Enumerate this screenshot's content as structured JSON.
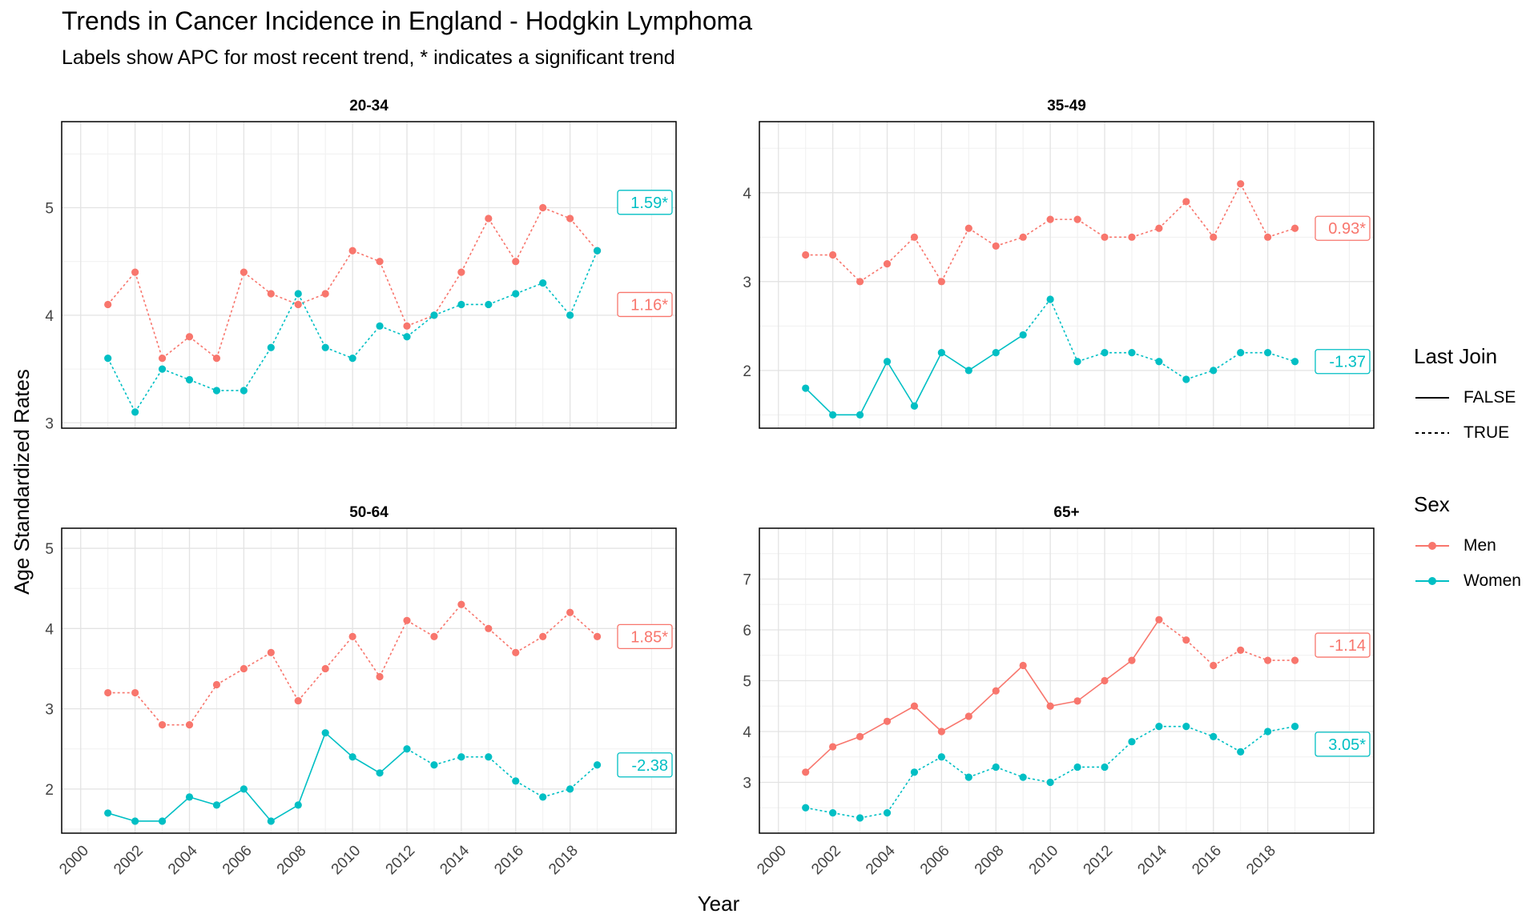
{
  "title": "Trends in Cancer Incidence in England - Hodgkin Lymphoma",
  "subtitle": "Labels show APC for most recent trend, * indicates a significant trend",
  "chart_data": {
    "type": "line",
    "xlabel": "Year",
    "ylabel": "Age Standardized Rates",
    "x_ticks": [
      "2000",
      "2002",
      "2004",
      "2006",
      "2008",
      "2010",
      "2012",
      "2014",
      "2016",
      "2018"
    ],
    "colors": {
      "Men": "#F8766D",
      "Women": "#00BFC4"
    },
    "grid": true,
    "legend_position": "right",
    "legends": [
      {
        "title": "Last Join",
        "items": [
          {
            "label": "FALSE",
            "linetype": "solid"
          },
          {
            "label": "TRUE",
            "linetype": "dotted"
          }
        ]
      },
      {
        "title": "Sex",
        "items": [
          {
            "label": "Men",
            "color": "#F8766D"
          },
          {
            "label": "Women",
            "color": "#00BFC4"
          }
        ]
      }
    ],
    "panels": [
      {
        "title": "20-34",
        "ylim": [
          2.95,
          5.8
        ],
        "y_ticks": [
          3,
          4,
          5
        ],
        "series": [
          {
            "name": "Men",
            "x": [
              2001,
              2002,
              2003,
              2004,
              2005,
              2006,
              2007,
              2008,
              2009,
              2010,
              2011,
              2012,
              2013,
              2014,
              2015,
              2016,
              2017,
              2018,
              2019
            ],
            "values": [
              4.1,
              4.4,
              3.6,
              3.8,
              3.6,
              4.4,
              4.2,
              4.1,
              4.2,
              4.6,
              4.5,
              3.9,
              4.0,
              4.4,
              4.9,
              4.5,
              5.0,
              4.9,
              4.6
            ],
            "last_join_from": 2001,
            "apc_label": "1.16*",
            "label_y": 4.1
          },
          {
            "name": "Women",
            "x": [
              2001,
              2002,
              2003,
              2004,
              2005,
              2006,
              2007,
              2008,
              2009,
              2010,
              2011,
              2012,
              2013,
              2014,
              2015,
              2016,
              2017,
              2018,
              2019
            ],
            "values": [
              3.6,
              3.1,
              3.5,
              3.4,
              3.3,
              3.3,
              3.7,
              4.2,
              3.7,
              3.6,
              3.9,
              3.8,
              4.0,
              4.1,
              4.1,
              4.2,
              4.3,
              4.0,
              4.6
            ],
            "last_join_from": 2001,
            "apc_label": "1.59*",
            "label_y": 5.05
          }
        ]
      },
      {
        "title": "35-49",
        "ylim": [
          1.35,
          4.8
        ],
        "y_ticks": [
          2,
          3,
          4
        ],
        "series": [
          {
            "name": "Men",
            "x": [
              2001,
              2002,
              2003,
              2004,
              2005,
              2006,
              2007,
              2008,
              2009,
              2010,
              2011,
              2012,
              2013,
              2014,
              2015,
              2016,
              2017,
              2018,
              2019
            ],
            "values": [
              3.3,
              3.3,
              3.0,
              3.2,
              3.5,
              3.0,
              3.6,
              3.4,
              3.5,
              3.7,
              3.7,
              3.5,
              3.5,
              3.6,
              3.9,
              3.5,
              4.1,
              3.5,
              3.6
            ],
            "last_join_from": 2001,
            "apc_label": "0.93*",
            "label_y": 3.6
          },
          {
            "name": "Women",
            "x": [
              2001,
              2002,
              2003,
              2004,
              2005,
              2006,
              2007,
              2008,
              2009,
              2010,
              2011,
              2012,
              2013,
              2014,
              2015,
              2016,
              2017,
              2018,
              2019
            ],
            "values": [
              1.8,
              1.5,
              1.5,
              2.1,
              1.6,
              2.2,
              2.0,
              2.2,
              2.4,
              2.8,
              2.1,
              2.2,
              2.2,
              2.1,
              1.9,
              2.0,
              2.2,
              2.2,
              2.1
            ],
            "last_join_from": 2009,
            "apc_label": "-1.37",
            "label_y": 2.1
          }
        ]
      },
      {
        "title": "50-64",
        "ylim": [
          1.45,
          5.25
        ],
        "y_ticks": [
          2,
          3,
          4,
          5
        ],
        "series": [
          {
            "name": "Men",
            "x": [
              2001,
              2002,
              2003,
              2004,
              2005,
              2006,
              2007,
              2008,
              2009,
              2010,
              2011,
              2012,
              2013,
              2014,
              2015,
              2016,
              2017,
              2018,
              2019
            ],
            "values": [
              3.2,
              3.2,
              2.8,
              2.8,
              3.3,
              3.5,
              3.7,
              3.1,
              3.5,
              3.9,
              3.4,
              4.1,
              3.9,
              4.3,
              4.0,
              3.7,
              3.9,
              4.2,
              3.9
            ],
            "last_join_from": 2001,
            "apc_label": "1.85*",
            "label_y": 3.9
          },
          {
            "name": "Women",
            "x": [
              2001,
              2002,
              2003,
              2004,
              2005,
              2006,
              2007,
              2008,
              2009,
              2010,
              2011,
              2012,
              2013,
              2014,
              2015,
              2016,
              2017,
              2018,
              2019
            ],
            "values": [
              1.7,
              1.6,
              1.6,
              1.9,
              1.8,
              2.0,
              1.6,
              1.8,
              2.7,
              2.4,
              2.2,
              2.5,
              2.3,
              2.4,
              2.4,
              2.1,
              1.9,
              2.0,
              2.3
            ],
            "last_join_from": 2012,
            "apc_label": "-2.38",
            "label_y": 2.3
          }
        ]
      },
      {
        "title": "65+",
        "ylim": [
          2.0,
          8.0
        ],
        "y_ticks": [
          3,
          4,
          5,
          6,
          7
        ],
        "series": [
          {
            "name": "Men",
            "x": [
              2001,
              2002,
              2003,
              2004,
              2005,
              2006,
              2007,
              2008,
              2009,
              2010,
              2011,
              2012,
              2013,
              2014,
              2015,
              2016,
              2017,
              2018,
              2019
            ],
            "values": [
              3.2,
              3.7,
              3.9,
              4.2,
              4.5,
              4.0,
              4.3,
              4.8,
              5.3,
              4.5,
              4.6,
              5.0,
              5.4,
              6.2,
              5.8,
              5.3,
              5.6,
              5.4,
              5.4
            ],
            "last_join_from": 2014,
            "apc_label": "-1.14",
            "label_y": 5.7
          },
          {
            "name": "Women",
            "x": [
              2001,
              2002,
              2003,
              2004,
              2005,
              2006,
              2007,
              2008,
              2009,
              2010,
              2011,
              2012,
              2013,
              2014,
              2015,
              2016,
              2017,
              2018,
              2019
            ],
            "values": [
              2.5,
              2.4,
              2.3,
              2.4,
              3.2,
              3.5,
              3.1,
              3.3,
              3.1,
              3.0,
              3.3,
              3.3,
              3.8,
              4.1,
              4.1,
              3.9,
              3.6,
              4.0,
              4.1
            ],
            "last_join_from": 2001,
            "apc_label": "3.05*",
            "label_y": 3.75
          }
        ]
      }
    ]
  }
}
